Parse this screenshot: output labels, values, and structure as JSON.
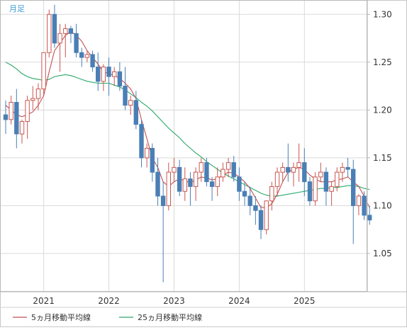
{
  "chart_data": {
    "type": "candlestick",
    "period_label": "月足",
    "x_tick_labels": [
      "2021",
      "2022",
      "2023",
      "2024",
      "2025"
    ],
    "y_tick_labels": [
      "1.30",
      "1.25",
      "1.20",
      "1.15",
      "1.10",
      "1.05"
    ],
    "y_ticks": [
      1.3,
      1.25,
      1.2,
      1.15,
      1.1,
      1.05
    ],
    "ylim": [
      1.01,
      1.315
    ],
    "legend": [
      "5ヵ月移動平均線",
      "25ヵ月移動平均線"
    ],
    "colors": {
      "up": "#c8564f",
      "down": "#4a7fb5",
      "ma5": "#c05050",
      "ma25": "#2aa86a",
      "grid": "#d9d9d9"
    },
    "candles": [
      [
        1.195,
        1.21,
        1.175,
        1.19
      ],
      [
        1.19,
        1.215,
        1.185,
        1.208
      ],
      [
        1.208,
        1.222,
        1.16,
        1.175
      ],
      [
        1.175,
        1.19,
        1.165,
        1.188
      ],
      [
        1.188,
        1.215,
        1.17,
        1.21
      ],
      [
        1.21,
        1.225,
        1.2,
        1.212
      ],
      [
        1.212,
        1.228,
        1.2,
        1.222
      ],
      [
        1.222,
        1.26,
        1.215,
        1.26
      ],
      [
        1.26,
        1.305,
        1.255,
        1.3
      ],
      [
        1.3,
        1.31,
        1.265,
        1.27
      ],
      [
        1.27,
        1.29,
        1.24,
        1.28
      ],
      [
        1.28,
        1.29,
        1.255,
        1.285
      ],
      [
        1.285,
        1.288,
        1.27,
        1.28
      ],
      [
        1.28,
        1.29,
        1.255,
        1.26
      ],
      [
        1.26,
        1.265,
        1.245,
        1.255
      ],
      [
        1.255,
        1.262,
        1.25,
        1.258
      ],
      [
        1.258,
        1.262,
        1.24,
        1.245
      ],
      [
        1.245,
        1.26,
        1.22,
        1.23
      ],
      [
        1.23,
        1.248,
        1.22,
        1.245
      ],
      [
        1.245,
        1.255,
        1.215,
        1.235
      ],
      [
        1.235,
        1.245,
        1.225,
        1.24
      ],
      [
        1.24,
        1.25,
        1.22,
        1.225
      ],
      [
        1.225,
        1.245,
        1.2,
        1.205
      ],
      [
        1.205,
        1.215,
        1.195,
        1.21
      ],
      [
        1.21,
        1.22,
        1.18,
        1.185
      ],
      [
        1.185,
        1.19,
        1.14,
        1.15
      ],
      [
        1.15,
        1.165,
        1.14,
        1.16
      ],
      [
        1.16,
        1.165,
        1.125,
        1.135
      ],
      [
        1.135,
        1.15,
        1.1,
        1.11
      ],
      [
        1.11,
        1.125,
        1.02,
        1.1
      ],
      [
        1.1,
        1.145,
        1.095,
        1.135
      ],
      [
        1.135,
        1.15,
        1.125,
        1.14
      ],
      [
        1.14,
        1.148,
        1.11,
        1.115
      ],
      [
        1.115,
        1.14,
        1.105,
        1.128
      ],
      [
        1.128,
        1.135,
        1.1,
        1.12
      ],
      [
        1.12,
        1.14,
        1.105,
        1.135
      ],
      [
        1.135,
        1.15,
        1.125,
        1.145
      ],
      [
        1.145,
        1.15,
        1.12,
        1.125
      ],
      [
        1.125,
        1.13,
        1.105,
        1.12
      ],
      [
        1.12,
        1.14,
        1.11,
        1.13
      ],
      [
        1.13,
        1.145,
        1.125,
        1.138
      ],
      [
        1.138,
        1.15,
        1.13,
        1.145
      ],
      [
        1.145,
        1.152,
        1.125,
        1.13
      ],
      [
        1.13,
        1.14,
        1.105,
        1.115
      ],
      [
        1.115,
        1.125,
        1.1,
        1.11
      ],
      [
        1.11,
        1.12,
        1.09,
        1.1
      ],
      [
        1.1,
        1.11,
        1.08,
        1.095
      ],
      [
        1.095,
        1.1,
        1.065,
        1.075
      ],
      [
        1.075,
        1.105,
        1.07,
        1.105
      ],
      [
        1.105,
        1.125,
        1.095,
        1.12
      ],
      [
        1.12,
        1.14,
        1.11,
        1.135
      ],
      [
        1.135,
        1.145,
        1.125,
        1.14
      ],
      [
        1.14,
        1.165,
        1.125,
        1.135
      ],
      [
        1.135,
        1.145,
        1.12,
        1.14
      ],
      [
        1.14,
        1.165,
        1.125,
        1.145
      ],
      [
        1.145,
        1.16,
        1.11,
        1.125
      ],
      [
        1.125,
        1.13,
        1.1,
        1.105
      ],
      [
        1.105,
        1.135,
        1.1,
        1.13
      ],
      [
        1.13,
        1.145,
        1.125,
        1.135
      ],
      [
        1.135,
        1.14,
        1.1,
        1.115
      ],
      [
        1.115,
        1.125,
        1.1,
        1.12
      ],
      [
        1.12,
        1.14,
        1.115,
        1.135
      ],
      [
        1.135,
        1.145,
        1.125,
        1.14
      ],
      [
        1.14,
        1.15,
        1.13,
        1.138
      ],
      [
        1.138,
        1.148,
        1.06,
        1.1
      ],
      [
        1.1,
        1.112,
        1.09,
        1.11
      ],
      [
        1.11,
        1.115,
        1.085,
        1.09
      ],
      [
        1.09,
        1.1,
        1.08,
        1.085
      ]
    ],
    "ma5": [
      1.205,
      1.2,
      1.195,
      1.193,
      1.195,
      1.198,
      1.205,
      1.215,
      1.24,
      1.262,
      1.27,
      1.278,
      1.282,
      1.278,
      1.272,
      1.262,
      1.255,
      1.248,
      1.24,
      1.238,
      1.236,
      1.233,
      1.228,
      1.222,
      1.212,
      1.19,
      1.17,
      1.15,
      1.14,
      1.125,
      1.12,
      1.125,
      1.128,
      1.126,
      1.124,
      1.127,
      1.13,
      1.129,
      1.127,
      1.128,
      1.132,
      1.135,
      1.134,
      1.13,
      1.125,
      1.118,
      1.108,
      1.098,
      1.098,
      1.102,
      1.112,
      1.125,
      1.135,
      1.138,
      1.14,
      1.138,
      1.132,
      1.128,
      1.125,
      1.125,
      1.125,
      1.127,
      1.128,
      1.13,
      1.125,
      1.12,
      1.11,
      1.098
    ],
    "ma25": [
      1.25,
      1.247,
      1.243,
      1.238,
      1.235,
      1.233,
      1.232,
      1.231,
      1.232,
      1.235,
      1.236,
      1.237,
      1.236,
      1.234,
      1.232,
      1.23,
      1.229,
      1.228,
      1.228,
      1.228,
      1.226,
      1.224,
      1.221,
      1.217,
      1.213,
      1.208,
      1.204,
      1.199,
      1.193,
      1.187,
      1.181,
      1.176,
      1.171,
      1.165,
      1.16,
      1.155,
      1.151,
      1.146,
      1.142,
      1.138,
      1.134,
      1.131,
      1.128,
      1.125,
      1.122,
      1.119,
      1.116,
      1.113,
      1.111,
      1.11,
      1.11,
      1.111,
      1.112,
      1.113,
      1.114,
      1.115,
      1.116,
      1.117,
      1.118,
      1.118,
      1.119,
      1.119,
      1.12,
      1.121,
      1.121,
      1.12,
      1.118,
      1.117
    ]
  }
}
